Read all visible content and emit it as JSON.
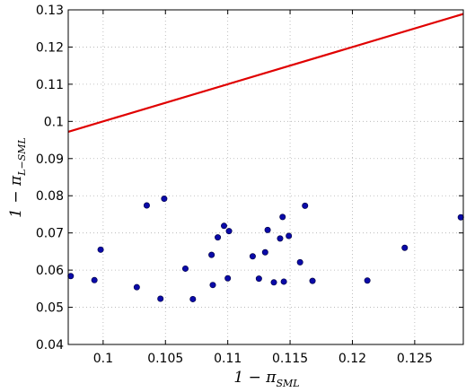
{
  "chart_data": {
    "type": "scatter",
    "title": "",
    "xlabel": "1 − π_SML",
    "ylabel": "1 − π_L−SML",
    "xlabel_parts": {
      "main": "1 − π",
      "sub": "SML"
    },
    "ylabel_parts": {
      "main": "1 − π",
      "sub": "L−SML"
    },
    "xlim": [
      0.0972,
      0.1289
    ],
    "ylim": [
      0.04,
      0.13
    ],
    "grid": true,
    "x_ticks": [
      0.1,
      0.105,
      0.11,
      0.115,
      0.12,
      0.125
    ],
    "x_tick_labels": [
      "0.1",
      "0.105",
      "0.11",
      "0.115",
      "0.12",
      "0.125"
    ],
    "y_ticks": [
      0.04,
      0.05,
      0.06,
      0.07,
      0.08,
      0.09,
      0.1,
      0.11,
      0.12,
      0.13
    ],
    "y_tick_labels": [
      "0.04",
      "0.05",
      "0.06",
      "0.07",
      "0.08",
      "0.09",
      "0.1",
      "0.11",
      "0.12",
      "0.13"
    ],
    "series": [
      {
        "type": "scatter",
        "color": "#0a0aa8",
        "points": [
          [
            0.0974,
            0.0584
          ],
          [
            0.0993,
            0.0573
          ],
          [
            0.0998,
            0.0655
          ],
          [
            0.1027,
            0.0554
          ],
          [
            0.1035,
            0.0774
          ],
          [
            0.1046,
            0.0523
          ],
          [
            0.1049,
            0.0792
          ],
          [
            0.1066,
            0.0604
          ],
          [
            0.1072,
            0.0522
          ],
          [
            0.1087,
            0.0641
          ],
          [
            0.1088,
            0.056
          ],
          [
            0.1092,
            0.0688
          ],
          [
            0.1097,
            0.0719
          ],
          [
            0.11,
            0.0578
          ],
          [
            0.1101,
            0.0705
          ],
          [
            0.112,
            0.0637
          ],
          [
            0.1125,
            0.0577
          ],
          [
            0.113,
            0.0648
          ],
          [
            0.1132,
            0.0708
          ],
          [
            0.1137,
            0.0567
          ],
          [
            0.1142,
            0.0685
          ],
          [
            0.1144,
            0.0743
          ],
          [
            0.1145,
            0.0569
          ],
          [
            0.1149,
            0.0692
          ],
          [
            0.1158,
            0.0621
          ],
          [
            0.1162,
            0.0773
          ],
          [
            0.1168,
            0.0571
          ],
          [
            0.1212,
            0.0572
          ],
          [
            0.1242,
            0.066
          ],
          [
            0.1287,
            0.0742
          ]
        ]
      },
      {
        "type": "line",
        "color": "#e00000",
        "x": [
          0.0972,
          0.1289
        ],
        "y": [
          0.0972,
          0.1289
        ]
      }
    ]
  }
}
